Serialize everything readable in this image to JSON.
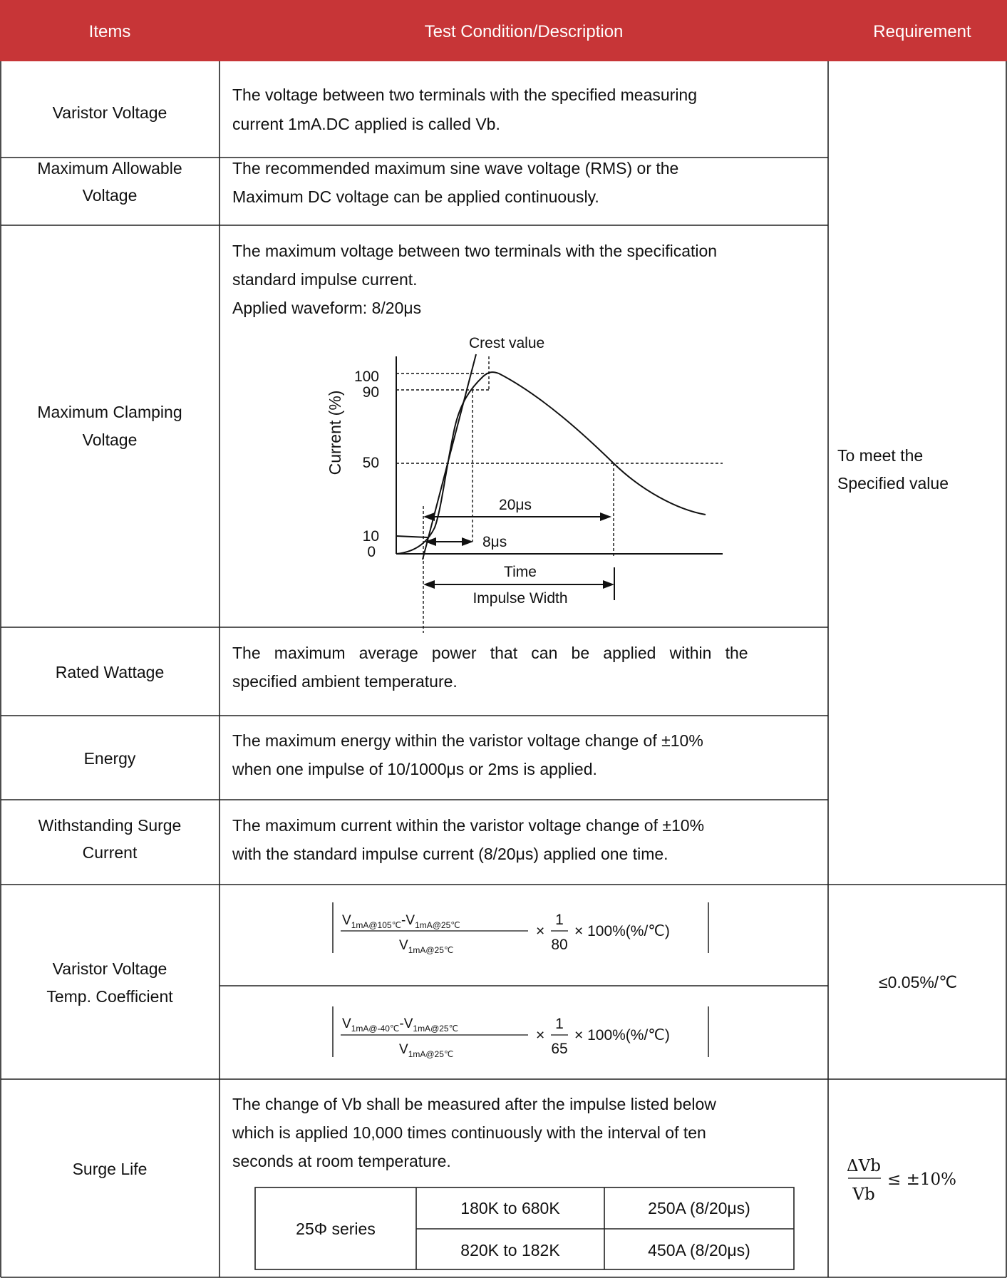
{
  "header": {
    "items": "Items",
    "test_condition": "Test Condition/Description",
    "requirement": "Requirement"
  },
  "rows": [
    {
      "item_lines": [
        "Varistor Voltage"
      ],
      "desc_lines": [
        "The voltage between two terminals with the specified measuring",
        "current 1mA.DC applied is called Vb."
      ]
    },
    {
      "item_lines": [
        "Maximum Allowable",
        "Voltage"
      ],
      "desc_lines": [
        "The recommended maximum sine wave voltage (RMS) or the",
        "Maximum DC voltage can be applied continuously."
      ]
    },
    {
      "item_lines": [
        "Maximum Clamping",
        "Voltage"
      ],
      "desc_lines": [
        "The maximum voltage between two terminals with the specification",
        "standard impulse current.",
        "Applied waveform: 8/20μs"
      ]
    },
    {
      "item_lines": [
        "Rated Wattage"
      ],
      "desc_lines": [
        "The   maximum   average   power   that   can   be   applied   within   the",
        "specified ambient temperature."
      ]
    },
    {
      "item_lines": [
        "Energy"
      ],
      "desc_lines": [
        "The maximum energy within the varistor voltage change of ±10%",
        "when one impulse of 10/1000μs or 2ms is applied."
      ]
    },
    {
      "item_lines": [
        "Withstanding Surge",
        "Current"
      ],
      "desc_lines": [
        "The maximum current within the varistor voltage change of ±10%",
        "with the standard impulse current (8/20μs) applied one time."
      ]
    }
  ],
  "shared_requirement": [
    "To meet the",
    "Specified value"
  ],
  "waveform": {
    "crest_label": "Crest value",
    "y_axis_label": "Current (%)",
    "y_ticks": [
      "100",
      "90",
      "50",
      "10",
      "0"
    ],
    "label_20us": "20μs",
    "label_8us": "8μs",
    "time_label": "Time",
    "impulse_width_label": "Impulse Width"
  },
  "temp_coeff": {
    "item_lines": [
      "Varistor Voltage",
      "Temp. Coefficient"
    ],
    "formula1": {
      "num_a": "V",
      "num_a_sub": "1mA@105℃",
      "minus": "-",
      "num_b": "V",
      "num_b_sub": "1mA@25℃",
      "den": "V",
      "den_sub": "1mA@25℃",
      "times": "×",
      "frac_num": "1",
      "frac_den": "80",
      "tail": "× 100%(%/℃)"
    },
    "formula2": {
      "num_a": "V",
      "num_a_sub": "1mA@-40℃",
      "minus": "-",
      "num_b": "V",
      "num_b_sub": "1mA@25℃",
      "den": "V",
      "den_sub": "1mA@25℃",
      "times": "×",
      "frac_num": "1",
      "frac_den": "65",
      "tail": "× 100%(%/℃)"
    },
    "requirement": "≤0.05%/℃"
  },
  "surge_life": {
    "item": "Surge Life",
    "desc_lines": [
      "The change of Vb shall be measured after the impulse listed below",
      "which is applied 10,000 times continuously with the interval of ten",
      "seconds at room temperature."
    ],
    "table": {
      "series": "25Φ series",
      "rows": [
        {
          "range": "180K to 680K",
          "current": "250A (8/20μs)"
        },
        {
          "range": "820K to 182K",
          "current": "450A (8/20μs)"
        }
      ]
    },
    "req_num": "ΔVb",
    "req_den": "Vb",
    "req_tail": "≤ ±10%"
  }
}
